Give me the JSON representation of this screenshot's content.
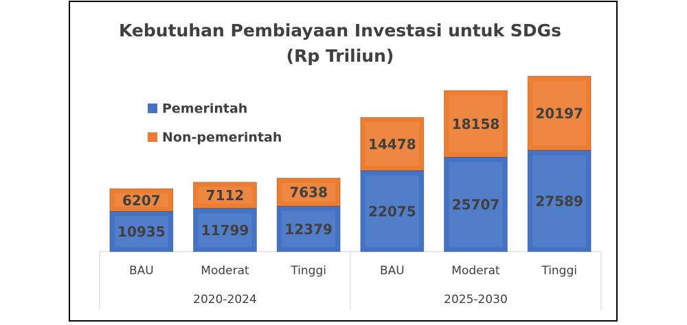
{
  "chart_data": {
    "type": "stacked_bar",
    "title": "Kebutuhan Pembiayaan Investasi untuk SDGs",
    "subtitle": "(Rp Triliun)",
    "categories": [
      "BAU",
      "Moderat",
      "Tinggi",
      "BAU",
      "Moderat",
      "Tinggi"
    ],
    "groups": [
      "2020-2024",
      "2025-2030"
    ],
    "series": [
      {
        "name": "Pemerintah",
        "color": "#4472c4",
        "values": [
          10935,
          11799,
          12379,
          22075,
          25707,
          27589
        ]
      },
      {
        "name": "Non-pemerintah",
        "color": "#ed7d31",
        "values": [
          6207,
          7112,
          7638,
          14478,
          18158,
          20197
        ]
      }
    ],
    "legend": "upper left"
  }
}
